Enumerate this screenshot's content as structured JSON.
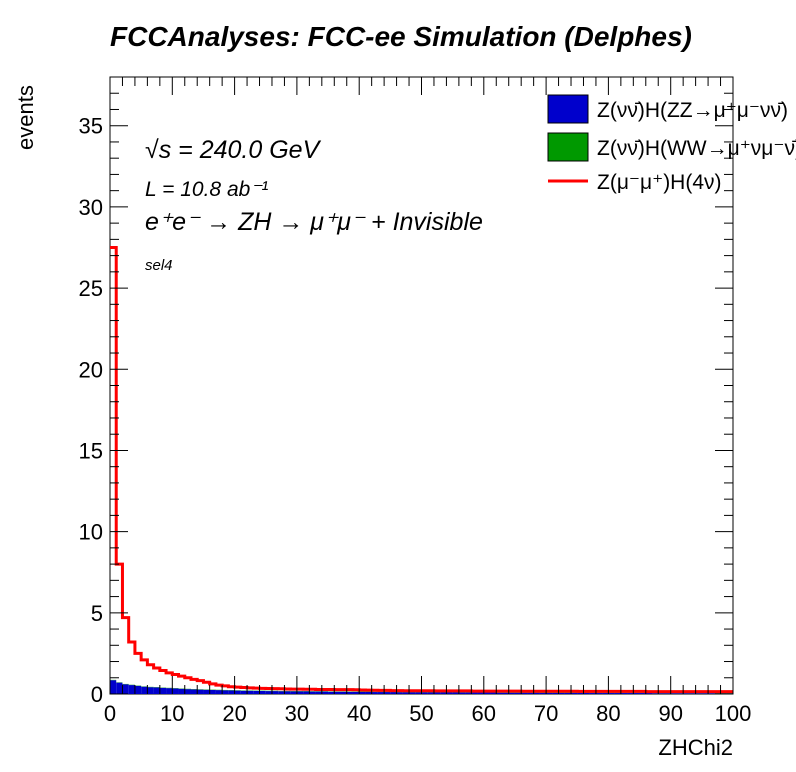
{
  "title": "FCCAnalyses: FCC-ee Simulation (Delphes)",
  "annotations": {
    "sqrt_s": "√s = 240.0 GeV",
    "lumi": "L = 10.8 ab⁻¹",
    "process": "e⁺e⁻ → ZH → μ⁺μ⁻ + Invisible",
    "selection": "sel4"
  },
  "chart_data": {
    "type": "histogram",
    "xlabel": "ZHChi2",
    "ylabel": "events",
    "xlim": [
      0,
      100
    ],
    "ylim": [
      0,
      38
    ],
    "x_ticks": [
      "0",
      "10",
      "20",
      "30",
      "40",
      "50",
      "60",
      "70",
      "80",
      "90",
      "100"
    ],
    "y_ticks": [
      "0",
      "5",
      "10",
      "15",
      "20",
      "25",
      "30",
      "35"
    ],
    "legend_position": "top-right",
    "bin_edges_start": 0,
    "bin_width": 1,
    "series": [
      {
        "name": "Z(νν̄)H(ZZ→μ⁺μ⁻νν̄)",
        "style": "filled",
        "color": "#0000cc",
        "values": [
          0.85,
          0.7,
          0.6,
          0.55,
          0.5,
          0.45,
          0.42,
          0.4,
          0.38,
          0.36,
          0.34,
          0.32,
          0.3,
          0.28,
          0.27,
          0.26,
          0.25,
          0.24,
          0.23,
          0.22,
          0.21,
          0.2,
          0.2,
          0.19,
          0.19,
          0.18,
          0.18,
          0.17,
          0.17,
          0.16,
          0.16,
          0.16,
          0.15,
          0.15,
          0.15,
          0.14,
          0.14,
          0.14,
          0.13,
          0.13,
          0.13,
          0.13,
          0.12,
          0.12,
          0.12,
          0.12,
          0.11,
          0.11,
          0.11,
          0.11,
          0.1,
          0.1,
          0.1,
          0.1,
          0.1,
          0.1,
          0.09,
          0.09,
          0.09,
          0.09,
          0.09,
          0.09,
          0.08,
          0.08,
          0.08,
          0.08,
          0.08,
          0.08,
          0.08,
          0.07,
          0.07,
          0.07,
          0.07,
          0.07,
          0.07,
          0.07,
          0.07,
          0.06,
          0.06,
          0.06,
          0.06,
          0.06,
          0.06,
          0.06,
          0.06,
          0.06,
          0.06,
          0.05,
          0.05,
          0.05,
          0.05,
          0.05,
          0.05,
          0.05,
          0.05,
          0.05,
          0.05,
          0.05,
          0.05,
          0.05
        ]
      },
      {
        "name": "Z(νν̄)H(WW→μ⁺νμ⁻ν̄)",
        "style": "filled",
        "color": "#009900",
        "values": [
          0.02,
          0.02,
          0.02,
          0.02,
          0.02,
          0.02,
          0.02,
          0.02,
          0.02,
          0.02,
          0.02,
          0.02,
          0.02,
          0.02,
          0.02,
          0.02,
          0.02,
          0.02,
          0.02,
          0.02,
          0.02,
          0.02,
          0.02,
          0.02,
          0.02,
          0.02,
          0.02,
          0.02,
          0.02,
          0.02,
          0.02,
          0.02,
          0.02,
          0.02,
          0.02,
          0.02,
          0.02,
          0.02,
          0.02,
          0.02,
          0.02,
          0.02,
          0.02,
          0.02,
          0.02,
          0.02,
          0.02,
          0.02,
          0.02,
          0.02,
          0.02,
          0.02,
          0.02,
          0.02,
          0.02,
          0.02,
          0.02,
          0.02,
          0.02,
          0.02,
          0.02,
          0.02,
          0.02,
          0.02,
          0.02,
          0.02,
          0.02,
          0.02,
          0.02,
          0.02,
          0.02,
          0.02,
          0.02,
          0.02,
          0.02,
          0.02,
          0.02,
          0.02,
          0.02,
          0.02,
          0.02,
          0.02,
          0.02,
          0.02,
          0.02,
          0.02,
          0.02,
          0.02,
          0.02,
          0.02,
          0.02,
          0.02,
          0.02,
          0.02,
          0.02,
          0.02,
          0.02,
          0.02,
          0.02,
          0.02
        ]
      },
      {
        "name": "Z(μ⁻μ⁺)H(4ν)",
        "style": "line",
        "color": "#ff0000",
        "values": [
          27.5,
          8.0,
          4.7,
          3.2,
          2.5,
          2.1,
          1.8,
          1.6,
          1.45,
          1.3,
          1.2,
          1.1,
          1.0,
          0.9,
          0.82,
          0.72,
          0.62,
          0.55,
          0.5,
          0.45,
          0.42,
          0.4,
          0.38,
          0.36,
          0.35,
          0.34,
          0.33,
          0.32,
          0.31,
          0.3,
          0.3,
          0.29,
          0.29,
          0.28,
          0.28,
          0.28,
          0.27,
          0.27,
          0.27,
          0.26,
          0.25,
          0.24,
          0.23,
          0.22,
          0.22,
          0.21,
          0.21,
          0.2,
          0.2,
          0.2,
          0.2,
          0.2,
          0.19,
          0.19,
          0.19,
          0.19,
          0.19,
          0.19,
          0.18,
          0.18,
          0.18,
          0.18,
          0.18,
          0.18,
          0.18,
          0.18,
          0.17,
          0.17,
          0.17,
          0.17,
          0.17,
          0.17,
          0.17,
          0.17,
          0.17,
          0.16,
          0.16,
          0.16,
          0.16,
          0.16,
          0.16,
          0.16,
          0.16,
          0.16,
          0.16,
          0.16,
          0.15,
          0.15,
          0.15,
          0.15,
          0.15,
          0.15,
          0.15,
          0.15,
          0.15,
          0.15,
          0.15,
          0.15,
          0.15,
          0.15
        ]
      }
    ]
  }
}
